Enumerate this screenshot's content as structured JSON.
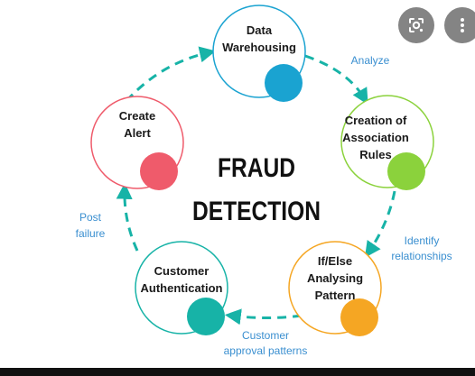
{
  "title": {
    "line1": "FRAUD",
    "line2": "DETECTION"
  },
  "nodes": [
    {
      "id": "data-warehousing",
      "lines": [
        "Data",
        "Warehousing"
      ],
      "color": "#1aa3d1",
      "ring": "#1aa3d1"
    },
    {
      "id": "association-rules",
      "lines": [
        "Creation of",
        "Association",
        "Rules"
      ],
      "color": "#8bd23c",
      "ring": "#8bd23c"
    },
    {
      "id": "if-else-pattern",
      "lines": [
        "If/Else",
        "Analysing",
        "Pattern"
      ],
      "color": "#f5a623",
      "ring": "#f5a623"
    },
    {
      "id": "customer-authentication",
      "lines": [
        "Customer",
        "Authentication"
      ],
      "color": "#17b3a7",
      "ring": "#17b3a7"
    },
    {
      "id": "create-alert",
      "lines": [
        "Create",
        "Alert"
      ],
      "color": "#ef5b6b",
      "ring": "#ef5b6b"
    }
  ],
  "edge_labels": [
    {
      "id": "analyze",
      "lines": [
        "Analyze"
      ]
    },
    {
      "id": "identify-relationships",
      "lines": [
        "Identify",
        "relationships"
      ]
    },
    {
      "id": "customer-approval",
      "lines": [
        "Customer",
        "approval patterns"
      ]
    },
    {
      "id": "post-failure",
      "lines": [
        "Post",
        "failure"
      ]
    }
  ],
  "colors": {
    "arrow": "#17b3a7",
    "edge_label": "#3a8fd0",
    "node_text": "#1a1a1a",
    "title": "#111111"
  },
  "overlay_buttons": [
    {
      "name": "google-lens-icon",
      "icon": "lens"
    },
    {
      "name": "more-options-icon",
      "icon": "more"
    }
  ]
}
